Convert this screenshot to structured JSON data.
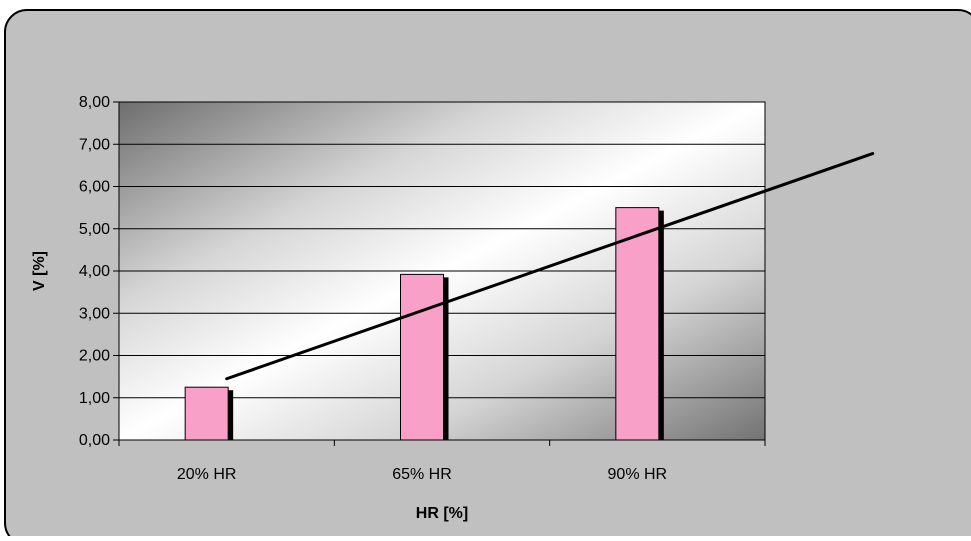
{
  "chart_data": {
    "type": "bar",
    "title": "",
    "xlabel": "HR [%]",
    "ylabel": "V [%]",
    "ylim": [
      0,
      8
    ],
    "yticks": [
      0,
      1,
      2,
      3,
      4,
      5,
      6,
      7,
      8
    ],
    "ytick_labels": [
      "0,00",
      "1,00",
      "2,00",
      "3,00",
      "4,00",
      "5,00",
      "6,00",
      "7,00",
      "8,00"
    ],
    "categories": [
      "20% HR",
      "65% HR",
      "90% HR"
    ],
    "series": [
      {
        "values": [
          1.25,
          3.92,
          5.5
        ],
        "color": "#f9a0c8"
      }
    ],
    "trendline": {
      "type": "linear",
      "start": {
        "x": 0.5,
        "y": 1.45
      },
      "end": {
        "x": 3.5,
        "y": 6.78
      },
      "color": "#000000"
    },
    "grid": true,
    "legend": "none",
    "colors": {
      "frame_background": "#c0c0c0",
      "bar": "#f9a0c8",
      "bar_shadow": "#000000"
    }
  }
}
